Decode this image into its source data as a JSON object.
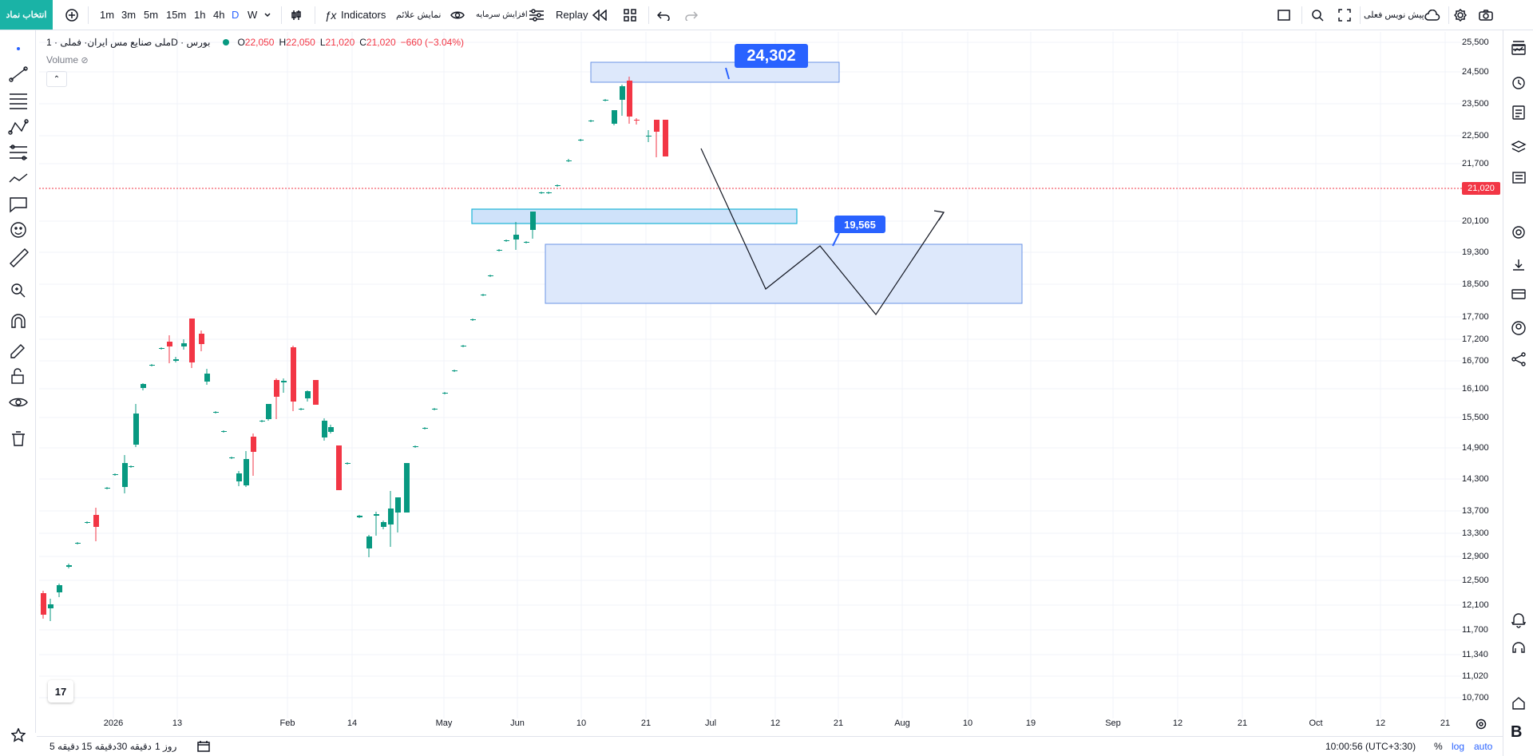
{
  "topbar": {
    "symbol_button": "انتخاب نماد",
    "timeframes": [
      "1m",
      "3m",
      "5m",
      "15m",
      "1h",
      "4h",
      "D",
      "W"
    ],
    "active_timeframe": "D",
    "indicators_label": "Indicators",
    "show_signals_label": "نمایش علائم",
    "capital_increase_label": "افزایش سرمایه",
    "replay_label": "Replay",
    "forecast_label": "پیش نویس فعلی",
    "icons": [
      "add-icon",
      "candles-icon",
      "fx-icon",
      "eye-icon",
      "sliders-icon",
      "rewind-icon",
      "layout-grid-icon",
      "undo-icon",
      "redo-icon",
      "rectangle-icon",
      "search-zoom-icon",
      "fullscreen-icon",
      "cloud-icon",
      "gear-icon",
      "camera-icon"
    ]
  },
  "legend": {
    "title": "ملی صنایع مس ایران· فملی · 1D · بورس",
    "open_label": "O",
    "open": "22,050",
    "high_label": "H",
    "high": "22,050",
    "low_label": "L",
    "low": "21,020",
    "close_label": "C",
    "close": "21,020",
    "change": "−660 (−3.04%)",
    "volume_label": "Volume",
    "collapse_symbol": "⌃"
  },
  "price_axis": [
    "25,500",
    "24,500",
    "23,500",
    "22,500",
    "21,700",
    "20,100",
    "19,300",
    "18,500",
    "17,700",
    "17,200",
    "16,700",
    "16,100",
    "15,500",
    "14,900",
    "14,300",
    "13,700",
    "13,300",
    "12,900",
    "12,500",
    "12,100",
    "11,700",
    "11,340",
    "11,020",
    "10,700"
  ],
  "last_price": "21,020",
  "time_axis": [
    "2026",
    "13",
    "Feb",
    "14",
    "May",
    "Jun",
    "10",
    "21",
    "Jul",
    "12",
    "21",
    "Aug",
    "10",
    "19",
    "Sep",
    "12",
    "21",
    "Oct",
    "12",
    "21"
  ],
  "callouts": {
    "target_high": "24,302",
    "target_low": "19,565"
  },
  "bottombar": {
    "ranges": [
      "5 دقیقه",
      "15 دقیقه",
      "30 دقیقه",
      "1 روز"
    ],
    "time": "10:00:56 (UTC+3:30)",
    "percent": "%",
    "log": "log",
    "auto": "auto"
  },
  "logo_text": "17",
  "bottom_right_letter": "B",
  "colors": {
    "up": "#089981",
    "down": "#f23645",
    "accent": "#2962ff",
    "zone_fill": "#dde8fb",
    "symbol_btn": "#1ab3a6"
  }
}
